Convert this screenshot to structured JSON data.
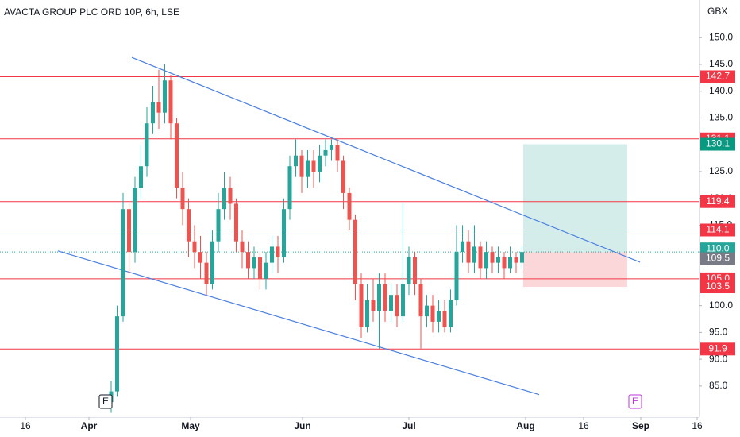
{
  "chart_data": {
    "type": "candlestick",
    "title": "AVACTA GROUP PLC ORD 10P, 6h, LSE",
    "y_axis_label": "GBX",
    "up_color": "#26a69a",
    "down_color": "#ef5350",
    "ylim": [
      79.2,
      157.0
    ],
    "yticks": [
      {
        "value": 85,
        "label": "85.0"
      },
      {
        "value": 90,
        "label": "90.0"
      },
      {
        "value": 95,
        "label": "95.0"
      },
      {
        "value": 100,
        "label": "100.0"
      },
      {
        "value": 110,
        "label": "110.0"
      },
      {
        "value": 115,
        "label": "115.0"
      },
      {
        "value": 120,
        "label": "120.0"
      },
      {
        "value": 125,
        "label": "125.0"
      },
      {
        "value": 135,
        "label": "135.0"
      },
      {
        "value": 140,
        "label": "140.0"
      },
      {
        "value": 145,
        "label": "145.0"
      },
      {
        "value": 150,
        "label": "150.0"
      }
    ],
    "xlim": [
      0,
      176
    ],
    "xticks": [
      {
        "value": 6.4,
        "label": "16"
      },
      {
        "value": 22.4,
        "label": "Apr"
      },
      {
        "value": 48,
        "label": "May"
      },
      {
        "value": 76.2,
        "label": "Jun"
      },
      {
        "value": 103,
        "label": "Jul"
      },
      {
        "value": 132.4,
        "label": "Aug"
      },
      {
        "value": 147,
        "label": "16"
      },
      {
        "value": 161.4,
        "label": "Sep"
      },
      {
        "value": 175.6,
        "label": "16"
      }
    ],
    "x": [
      28,
      29.5,
      31,
      32.5,
      34,
      35.5,
      37,
      38.5,
      40,
      41.5,
      43,
      44.5,
      46,
      47.5,
      49,
      50.5,
      52,
      53.5,
      55,
      56.5,
      58,
      59.5,
      61,
      62.5,
      64,
      65.5,
      67,
      68.5,
      70,
      71.5,
      73,
      74.5,
      76,
      77.5,
      79,
      80.5,
      82,
      83.5,
      85,
      86.5,
      88,
      89.5,
      91,
      92.5,
      94,
      95.5,
      97,
      98.5,
      100,
      101.5,
      103,
      104.5,
      106,
      107.5,
      109,
      110.5,
      112,
      113.5,
      115,
      116.5,
      118,
      119.5,
      121,
      122.5,
      124,
      125.5,
      127,
      128.5,
      130,
      131.5
    ],
    "open": [
      82,
      84,
      98,
      118,
      110,
      122,
      126,
      134,
      138,
      136,
      142,
      134,
      122,
      118,
      112,
      110,
      108,
      104,
      112,
      118,
      122,
      119,
      112,
      110,
      107,
      109,
      105,
      108,
      111,
      109,
      118,
      126,
      128,
      124,
      127,
      125,
      128,
      129,
      130,
      127,
      121,
      116,
      104,
      96,
      101,
      99,
      104,
      99,
      102,
      98,
      104,
      109,
      104,
      98,
      100,
      97,
      99,
      96,
      101,
      110,
      112,
      108,
      111,
      107,
      110,
      108,
      109,
      107,
      109,
      108
    ],
    "high": [
      86,
      100,
      121,
      119,
      124,
      130,
      137,
      141,
      144,
      145,
      143,
      135,
      125,
      120,
      115,
      113,
      110,
      114,
      121,
      125,
      124,
      120,
      114,
      112,
      111,
      110,
      110,
      113,
      113,
      120,
      128,
      131,
      129,
      129,
      129,
      130,
      131,
      131,
      131,
      128,
      122,
      117,
      106,
      104,
      105,
      106,
      106,
      104,
      104,
      119,
      111,
      110,
      105,
      102,
      102,
      101,
      101,
      103,
      115,
      115,
      114,
      115,
      112,
      112,
      111,
      111,
      110,
      111,
      110,
      111
    ],
    "low": [
      80,
      83,
      97,
      106,
      108,
      120,
      124,
      132,
      133,
      134,
      131,
      120,
      115,
      109,
      107,
      105,
      102,
      103,
      110,
      116,
      116,
      110,
      107,
      105,
      105,
      103,
      103,
      106,
      106,
      108,
      116,
      124,
      121,
      122,
      122,
      123,
      126,
      127,
      125,
      118,
      114,
      101,
      94,
      95,
      97,
      92,
      97,
      97,
      96,
      97,
      102,
      102,
      92,
      96,
      95,
      95,
      95,
      95,
      100,
      108,
      106,
      106,
      105,
      105,
      106,
      106,
      105,
      106,
      106,
      107
    ],
    "close": [
      84,
      98,
      118,
      110,
      122,
      126,
      134,
      138,
      136,
      142,
      134,
      122,
      118,
      112,
      110,
      108,
      104,
      112,
      118,
      122,
      119,
      112,
      110,
      107,
      109,
      105,
      108,
      111,
      109,
      118,
      126,
      128,
      124,
      127,
      125,
      128,
      129,
      130,
      127,
      121,
      116,
      104,
      96,
      101,
      99,
      104,
      99,
      102,
      98,
      104,
      109,
      104,
      98,
      100,
      97,
      99,
      96,
      101,
      110,
      112,
      108,
      111,
      107,
      110,
      108,
      109,
      107,
      109,
      108,
      110
    ],
    "levels": [
      {
        "value": 142.7,
        "label": "142.7"
      },
      {
        "value": 131.1,
        "label": "131.1"
      },
      {
        "value": 119.4,
        "label": "119.4"
      },
      {
        "value": 114.1,
        "label": "114.1"
      },
      {
        "value": 105,
        "label": "105.0"
      },
      {
        "value": 91.9,
        "label": "91.9"
      }
    ],
    "level_color": "#f23645",
    "last_price": {
      "value": 110,
      "label": "110.0"
    },
    "bid": {
      "value": 109.5,
      "label": "109.5"
    },
    "position": {
      "x": [
        131.8,
        158
      ],
      "entry": 110,
      "target": {
        "value": 130.1,
        "label": "130.1"
      },
      "stop": {
        "value": 103.5,
        "label": "103.5"
      }
    },
    "trend_color": "#4a7fe0",
    "trend_lines": [
      {
        "x": [
          33.2,
          161.2
        ],
        "y": [
          146.3,
          108.1
        ]
      },
      {
        "x": [
          14.6,
          135.8
        ],
        "y": [
          110.2,
          83.4
        ]
      }
    ],
    "events": [
      {
        "x": 26.6,
        "label": "E",
        "color": "#131722"
      },
      {
        "x": 160,
        "label": "E",
        "color": "#c233e0"
      }
    ]
  }
}
